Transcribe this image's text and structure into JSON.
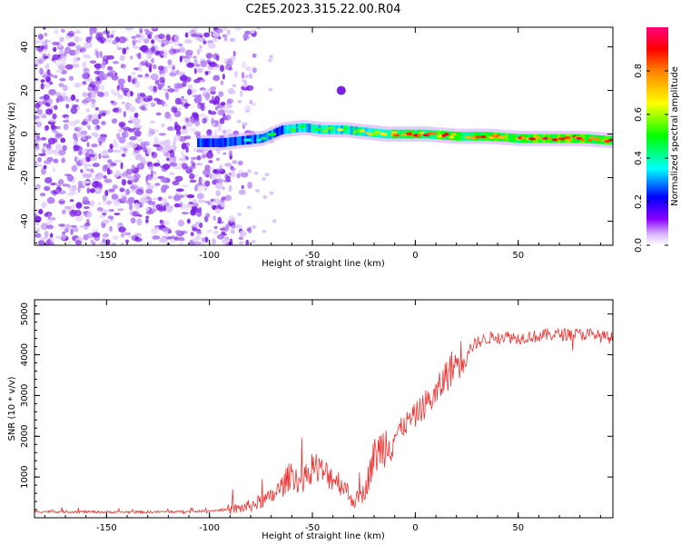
{
  "figure_title": "C2E5.2023.315.22.00.R04",
  "colors": {
    "snr_line": "#ee3333",
    "axis": "#000000",
    "speckle": "#7a1ee6",
    "background": "#ffffff"
  },
  "chart_data": [
    {
      "type": "heatmap",
      "title": "C2E5.2023.315.22.00.R04",
      "xlabel": "Height of straight line (km)",
      "ylabel": "Frequency (Hz)",
      "xlim": [
        -185,
        96
      ],
      "ylim": [
        -51,
        49
      ],
      "xticks": [
        -150,
        -100,
        -50,
        0,
        50
      ],
      "yticks": [
        -40,
        -20,
        0,
        20,
        40
      ],
      "colorbar": {
        "label": "Normalized spectral amplitude",
        "range": [
          0,
          1
        ],
        "ticks": [
          "0.0",
          "0.2",
          "0.4",
          "0.6",
          "0.8"
        ],
        "tick_values": [
          0.0,
          0.2,
          0.4,
          0.6,
          0.8
        ]
      },
      "noise_region_km": [
        -185,
        -88
      ],
      "echo_track": [
        {
          "x": -106,
          "y": -4,
          "amp": 0.3
        },
        {
          "x": -95,
          "y": -4,
          "amp": 0.35
        },
        {
          "x": -85,
          "y": -3,
          "amp": 0.4
        },
        {
          "x": -75,
          "y": -2,
          "amp": 0.45
        },
        {
          "x": -65,
          "y": 2,
          "amp": 0.5
        },
        {
          "x": -55,
          "y": 3,
          "amp": 0.55
        },
        {
          "x": -45,
          "y": 2,
          "amp": 0.6
        },
        {
          "x": -35,
          "y": 2,
          "amp": 0.65
        },
        {
          "x": -25,
          "y": 1,
          "amp": 0.7
        },
        {
          "x": -15,
          "y": 0,
          "amp": 0.75
        },
        {
          "x": -5,
          "y": 0,
          "amp": 0.85
        },
        {
          "x": 5,
          "y": 0,
          "amp": 0.9
        },
        {
          "x": 20,
          "y": -1,
          "amp": 0.88
        },
        {
          "x": 35,
          "y": -1,
          "amp": 0.92
        },
        {
          "x": 50,
          "y": -2,
          "amp": 0.92
        },
        {
          "x": 65,
          "y": -2,
          "amp": 0.95
        },
        {
          "x": 80,
          "y": -2,
          "amp": 0.95
        },
        {
          "x": 96,
          "y": -3,
          "amp": 0.9
        }
      ]
    },
    {
      "type": "line",
      "xlabel": "Height of straight line (km)",
      "ylabel": "SNR (10 * v/v)",
      "xlim": [
        -185,
        96
      ],
      "ylim": [
        0,
        5350
      ],
      "xticks": [
        -150,
        -100,
        -50,
        0,
        50
      ],
      "yticks": [
        1000,
        2000,
        3000,
        4000,
        5000
      ],
      "series": [
        {
          "name": "SNR",
          "x": [
            -185,
            -170,
            -150,
            -130,
            -110,
            -100,
            -90,
            -85,
            -80,
            -75,
            -70,
            -65,
            -60,
            -55,
            -50,
            -45,
            -40,
            -35,
            -30,
            -25,
            -20,
            -15,
            -10,
            -5,
            0,
            5,
            10,
            15,
            20,
            25,
            30,
            35,
            40,
            45,
            50,
            55,
            60,
            65,
            70,
            75,
            80,
            85,
            90,
            96
          ],
          "y": [
            150,
            150,
            140,
            140,
            150,
            170,
            200,
            230,
            300,
            400,
            500,
            750,
            1100,
            800,
            1300,
            1100,
            1000,
            800,
            400,
            600,
            1500,
            1800,
            2000,
            2300,
            2500,
            2800,
            3000,
            3500,
            3800,
            4100,
            4300,
            4400,
            4450,
            4450,
            4400,
            4450,
            4450,
            4500,
            4500,
            4500,
            4500,
            4500,
            4450,
            4400
          ]
        }
      ]
    }
  ]
}
